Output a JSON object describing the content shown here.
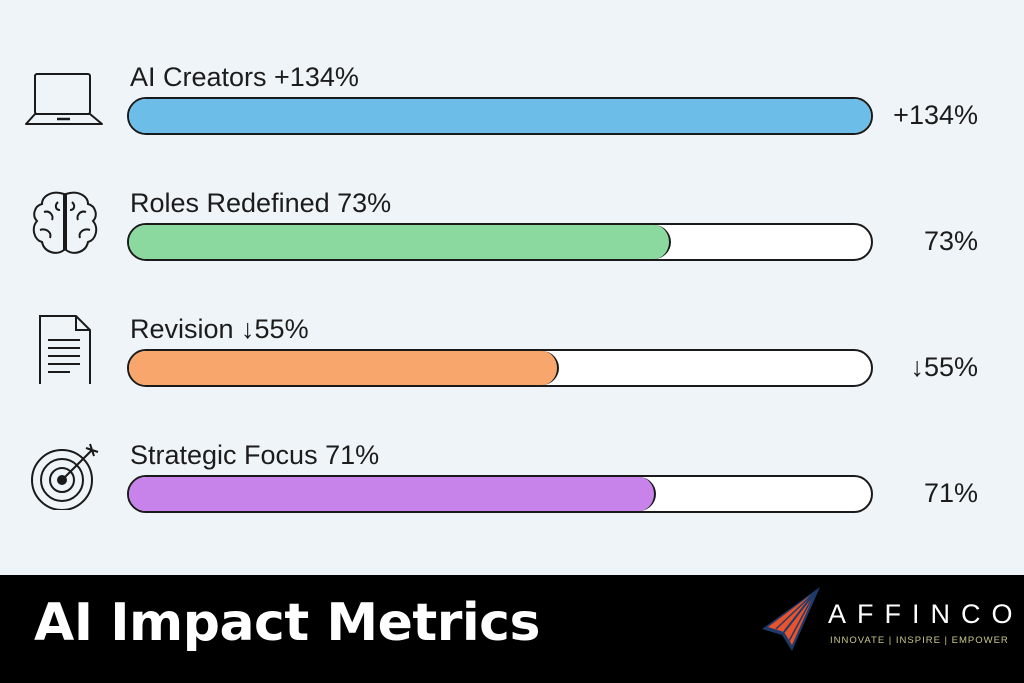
{
  "chart_data": {
    "type": "bar",
    "orientation": "horizontal",
    "title": "AI Impact Metrics",
    "categories": [
      "AI Creators",
      "Roles Redefined",
      "Revision",
      "Strategic Focus"
    ],
    "values": [
      134,
      73,
      55,
      71
    ],
    "labels": [
      "AI Creators +134%",
      "Roles Redefined 73%",
      "Revision ↓55%",
      "Strategic Focus 71%"
    ],
    "value_labels": [
      "+134%",
      "73%",
      "↓55%",
      "71%"
    ],
    "fill_percent": [
      100,
      73,
      58,
      71
    ],
    "colors": [
      "#6dbde9",
      "#8bd99e",
      "#f8a66c",
      "#c883ea"
    ],
    "icons": [
      "laptop-icon",
      "brain-icon",
      "document-icon",
      "target-icon"
    ],
    "grid": false
  },
  "footer": {
    "title": "AI Impact Metrics",
    "logo_text": "AFFINCO",
    "logo_tagline": "INNOVATE | INSPIRE | EMPOWER"
  }
}
